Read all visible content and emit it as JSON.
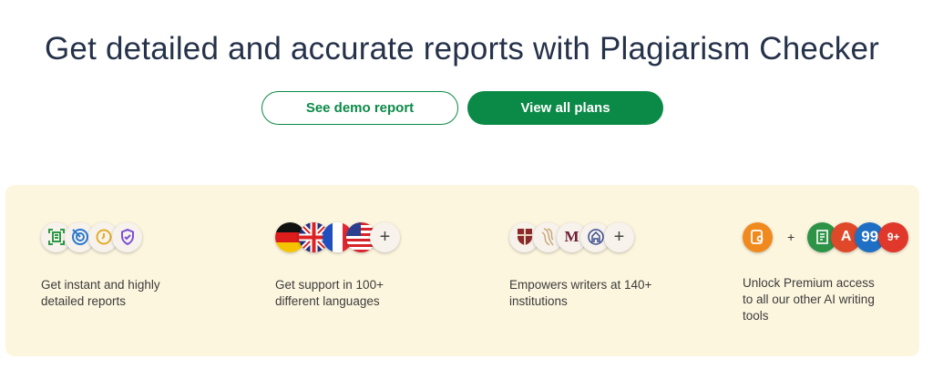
{
  "title": "Get detailed and accurate reports with Plagiarism Checker",
  "buttons": {
    "demo": "See demo report",
    "plans": "View all plans"
  },
  "colors": {
    "brand": "#0b8a47",
    "card_bg": "#fdf6df",
    "title": "#25324a"
  },
  "features": [
    {
      "text": "Get instant and highly detailed reports",
      "icons": [
        "scan-icon",
        "target-icon",
        "clock-icon",
        "shield-check-icon"
      ]
    },
    {
      "text": "Get support in 100+ different languages",
      "icons": [
        "germany-flag-icon",
        "uk-flag-icon",
        "france-flag-icon",
        "us-flag-icon",
        "plus-icon"
      ]
    },
    {
      "text": "Empowers writers at 140+ institutions",
      "icons": [
        "university-crest-icon",
        "university-logo-icon",
        "msu-logo-icon",
        "institution-seal-icon",
        "plus-icon"
      ]
    },
    {
      "text": "Unlock Premium access to all our other AI writing tools",
      "plus": "+",
      "more": "9+",
      "icons": [
        "plagiarism-checker-icon",
        "summarizer-icon",
        "grammar-checker-icon",
        "citation-icon",
        "more-tools-badge"
      ]
    }
  ]
}
